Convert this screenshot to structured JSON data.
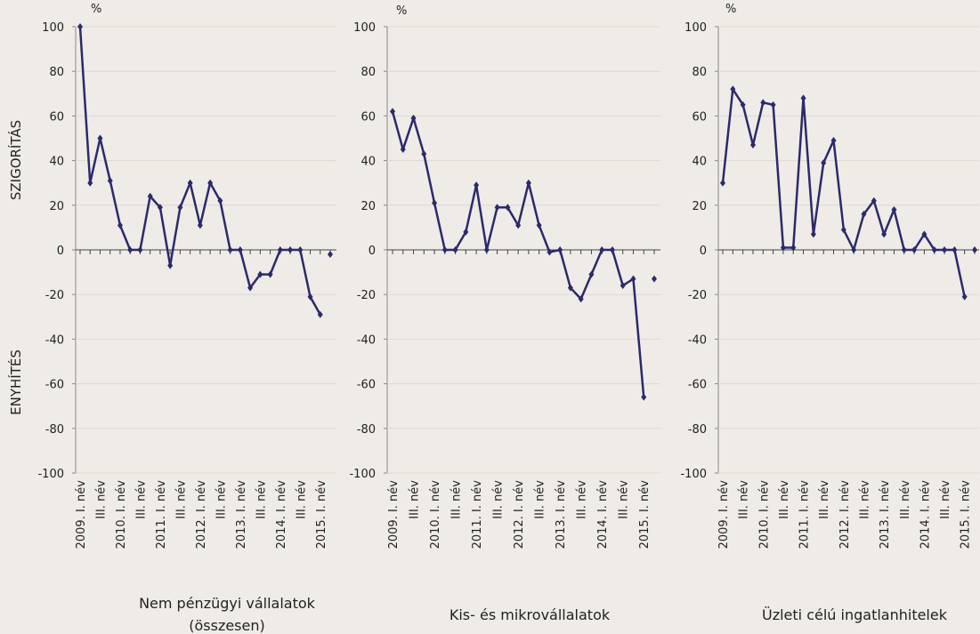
{
  "chart_data": [
    {
      "type": "line",
      "title": "Nem pénzügyi vállalatok (összesen)",
      "unit": "%",
      "ylabel_top": "SZIGORÍTÁS",
      "ylabel_bottom": "ENYHÍTÉS",
      "categories": [
        "2009. I. név",
        null,
        "III. név",
        null,
        "2010. I. név",
        null,
        "III. név",
        null,
        "2011. I. név",
        null,
        "III. név",
        null,
        "2012. I. név",
        null,
        "III. név",
        null,
        "2013. I. név",
        null,
        "III. név",
        null,
        "2014. I. név",
        null,
        "III. név",
        null,
        "2015. I. név",
        null
      ],
      "series": [
        {
          "color": "#2b2a6b",
          "values": [
            100,
            30,
            50,
            31,
            11,
            0,
            0,
            24,
            19,
            -7,
            19,
            30,
            11,
            30,
            22,
            0,
            0,
            -17,
            -11,
            -11,
            0,
            0,
            0,
            -21,
            -29,
            null
          ]
        },
        {
          "color": "#2b2a6b",
          "values": [
            null,
            null,
            null,
            null,
            null,
            null,
            null,
            null,
            null,
            null,
            null,
            null,
            null,
            null,
            null,
            null,
            null,
            null,
            null,
            null,
            null,
            null,
            null,
            null,
            null,
            -2
          ]
        }
      ],
      "ylim": [
        -100,
        100
      ],
      "yticks": [
        -100,
        -80,
        -60,
        -40,
        -20,
        0,
        20,
        40,
        60,
        80,
        100
      ],
      "grid": true
    },
    {
      "type": "line",
      "title": "Kis- és mikrovállalatok",
      "unit": "%",
      "categories": [
        "2009. I. név",
        null,
        "III. név",
        null,
        "2010. I. név",
        null,
        "III. név",
        null,
        "2011. I. név",
        null,
        "III. név",
        null,
        "2012. I. név",
        null,
        "III. név",
        null,
        "2013. I. név",
        null,
        "III. név",
        null,
        "2014. I. név",
        null,
        "III. név",
        null,
        "2015. I. név",
        null
      ],
      "series": [
        {
          "color": "#2b2a6b",
          "values": [
            62,
            45,
            59,
            43,
            21,
            0,
            0,
            8,
            29,
            0,
            19,
            19,
            11,
            30,
            11,
            -1,
            0,
            -17,
            -22,
            -11,
            0,
            0,
            -16,
            -13,
            -66,
            null
          ]
        },
        {
          "color": "#2b2a6b",
          "values": [
            null,
            null,
            null,
            null,
            null,
            null,
            null,
            null,
            null,
            null,
            null,
            null,
            null,
            null,
            null,
            null,
            null,
            null,
            null,
            null,
            null,
            null,
            null,
            null,
            null,
            -13
          ]
        }
      ],
      "ylim": [
        -100,
        100
      ],
      "yticks": [
        -100,
        -80,
        -60,
        -40,
        -20,
        0,
        20,
        40,
        60,
        80,
        100
      ],
      "grid": true
    },
    {
      "type": "line",
      "title": "Üzleti célú ingatlanhitelek",
      "unit": "%",
      "categories": [
        "2009. I. név",
        null,
        "III. név",
        null,
        "2010. I. név",
        null,
        "III. név",
        null,
        "2011. I. név",
        null,
        "III. név",
        null,
        "2012. I. név",
        null,
        "III. név",
        null,
        "2013. I. név",
        null,
        "III. név",
        null,
        "2014. I. név",
        null,
        "III. név",
        null,
        "2015. I. név",
        null
      ],
      "series": [
        {
          "color": "#2b2a6b",
          "values": [
            30,
            72,
            65,
            47,
            66,
            65,
            1,
            1,
            68,
            7,
            39,
            49,
            9,
            0,
            16,
            22,
            7,
            18,
            0,
            0,
            7,
            0,
            0,
            0,
            -21,
            null
          ]
        },
        {
          "color": "#2b2a6b",
          "values": [
            null,
            null,
            null,
            null,
            null,
            null,
            null,
            null,
            null,
            null,
            null,
            null,
            null,
            null,
            null,
            null,
            null,
            null,
            null,
            null,
            null,
            null,
            null,
            null,
            null,
            0
          ]
        }
      ],
      "ylim": [
        -100,
        100
      ],
      "yticks": [
        -100,
        -80,
        -60,
        -40,
        -20,
        0,
        20,
        40,
        60,
        80,
        100
      ],
      "grid": true
    }
  ]
}
